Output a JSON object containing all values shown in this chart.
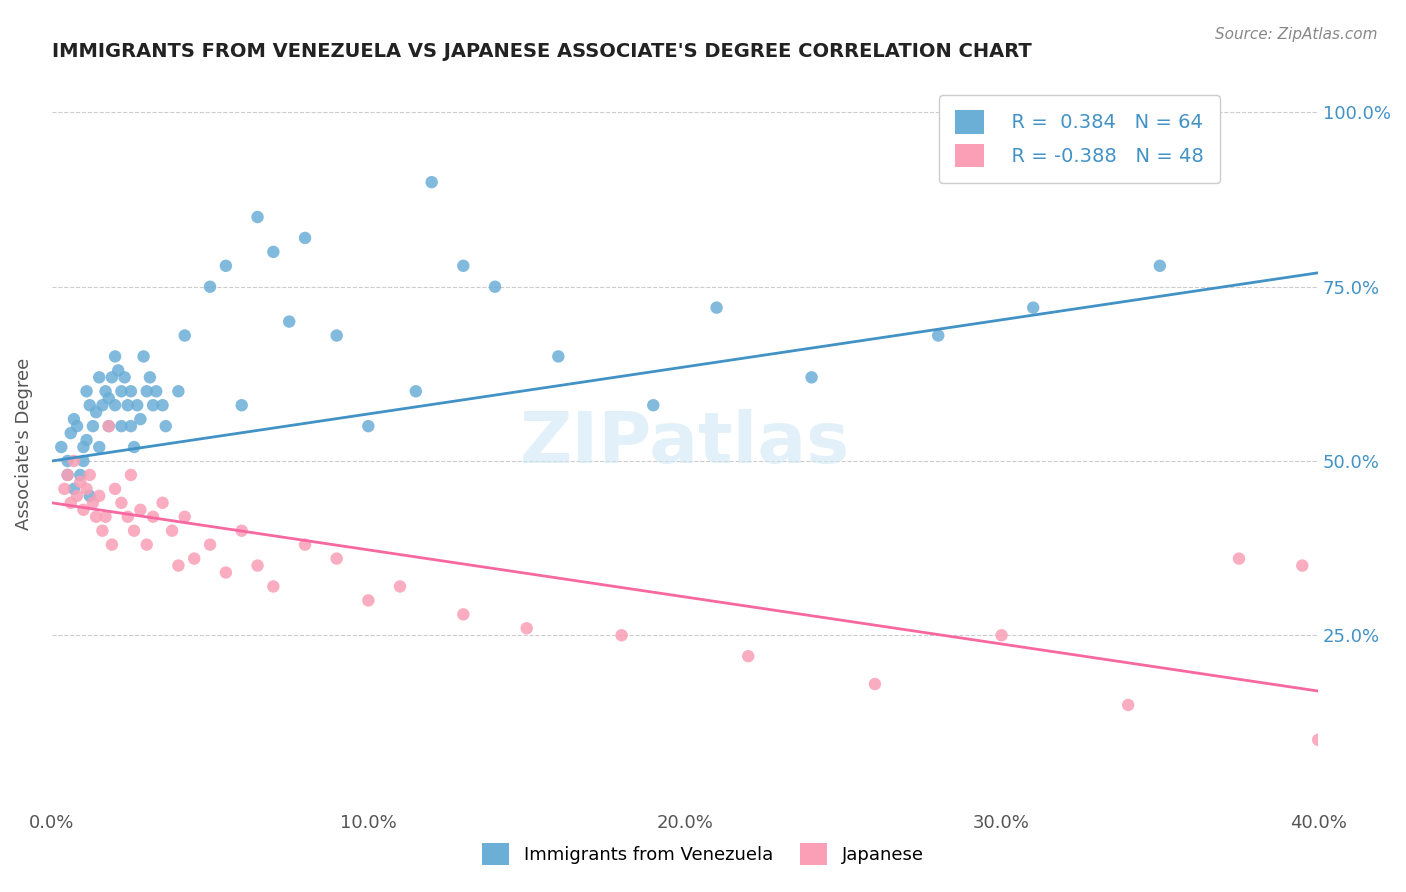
{
  "title": "IMMIGRANTS FROM VENEZUELA VS JAPANESE ASSOCIATE'S DEGREE CORRELATION CHART",
  "source": "Source: ZipAtlas.com",
  "xlabel": "",
  "ylabel": "Associate's Degree",
  "xlim": [
    0.0,
    0.4
  ],
  "ylim": [
    0.0,
    1.05
  ],
  "xtick_labels": [
    "0.0%",
    "10.0%",
    "20.0%",
    "30.0%",
    "40.0%"
  ],
  "xtick_vals": [
    0.0,
    0.1,
    0.2,
    0.3,
    0.4
  ],
  "ytick_labels": [
    "25.0%",
    "50.0%",
    "75.0%",
    "100.0%"
  ],
  "ytick_vals": [
    0.25,
    0.5,
    0.75,
    1.0
  ],
  "legend_r1": "R =  0.384   N = 64",
  "legend_r2": "R = -0.388   N = 48",
  "blue_color": "#6baed6",
  "pink_color": "#fa9fb5",
  "blue_line_color": "#4292c6",
  "pink_line_color": "#f768a1",
  "watermark": "ZIPatlas",
  "blue_scatter_x": [
    0.003,
    0.005,
    0.005,
    0.006,
    0.007,
    0.007,
    0.008,
    0.009,
    0.01,
    0.01,
    0.011,
    0.011,
    0.012,
    0.012,
    0.013,
    0.014,
    0.015,
    0.015,
    0.016,
    0.017,
    0.018,
    0.018,
    0.019,
    0.02,
    0.02,
    0.021,
    0.022,
    0.022,
    0.023,
    0.024,
    0.025,
    0.025,
    0.026,
    0.027,
    0.028,
    0.029,
    0.03,
    0.031,
    0.032,
    0.033,
    0.035,
    0.036,
    0.04,
    0.042,
    0.05,
    0.055,
    0.06,
    0.065,
    0.07,
    0.075,
    0.08,
    0.09,
    0.1,
    0.115,
    0.12,
    0.13,
    0.14,
    0.16,
    0.19,
    0.21,
    0.24,
    0.28,
    0.31,
    0.35
  ],
  "blue_scatter_y": [
    0.52,
    0.5,
    0.48,
    0.54,
    0.56,
    0.46,
    0.55,
    0.48,
    0.52,
    0.5,
    0.6,
    0.53,
    0.58,
    0.45,
    0.55,
    0.57,
    0.62,
    0.52,
    0.58,
    0.6,
    0.59,
    0.55,
    0.62,
    0.65,
    0.58,
    0.63,
    0.6,
    0.55,
    0.62,
    0.58,
    0.6,
    0.55,
    0.52,
    0.58,
    0.56,
    0.65,
    0.6,
    0.62,
    0.58,
    0.6,
    0.58,
    0.55,
    0.6,
    0.68,
    0.75,
    0.78,
    0.58,
    0.85,
    0.8,
    0.7,
    0.82,
    0.68,
    0.55,
    0.6,
    0.9,
    0.78,
    0.75,
    0.65,
    0.58,
    0.72,
    0.62,
    0.68,
    0.72,
    0.78
  ],
  "pink_scatter_x": [
    0.004,
    0.005,
    0.006,
    0.007,
    0.008,
    0.009,
    0.01,
    0.011,
    0.012,
    0.013,
    0.014,
    0.015,
    0.016,
    0.017,
    0.018,
    0.019,
    0.02,
    0.022,
    0.024,
    0.025,
    0.026,
    0.028,
    0.03,
    0.032,
    0.035,
    0.038,
    0.04,
    0.042,
    0.045,
    0.05,
    0.055,
    0.06,
    0.065,
    0.07,
    0.08,
    0.09,
    0.1,
    0.11,
    0.13,
    0.15,
    0.18,
    0.22,
    0.26,
    0.3,
    0.34,
    0.375,
    0.395,
    0.4
  ],
  "pink_scatter_y": [
    0.46,
    0.48,
    0.44,
    0.5,
    0.45,
    0.47,
    0.43,
    0.46,
    0.48,
    0.44,
    0.42,
    0.45,
    0.4,
    0.42,
    0.55,
    0.38,
    0.46,
    0.44,
    0.42,
    0.48,
    0.4,
    0.43,
    0.38,
    0.42,
    0.44,
    0.4,
    0.35,
    0.42,
    0.36,
    0.38,
    0.34,
    0.4,
    0.35,
    0.32,
    0.38,
    0.36,
    0.3,
    0.32,
    0.28,
    0.26,
    0.25,
    0.22,
    0.18,
    0.25,
    0.15,
    0.36,
    0.35,
    0.1
  ],
  "blue_line_x": [
    0.0,
    0.4
  ],
  "blue_line_y": [
    0.5,
    0.77
  ],
  "pink_line_x": [
    0.0,
    0.4
  ],
  "pink_line_y": [
    0.44,
    0.17
  ]
}
